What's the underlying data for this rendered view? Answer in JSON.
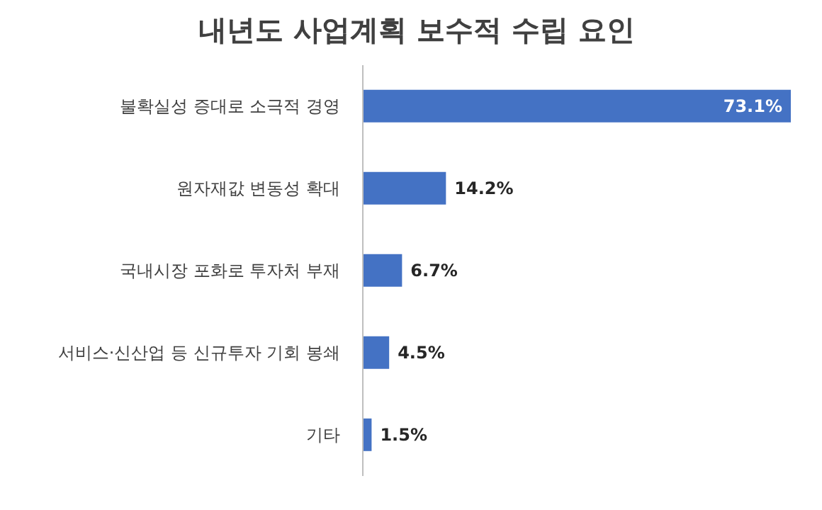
{
  "chart_data": {
    "type": "bar",
    "orientation": "horizontal",
    "title": "내년도 사업계획 보수적 수립 요인",
    "categories": [
      "불확실성 증대로 소극적 경영",
      "원자재값 변동성 확대",
      "국내시장 포화로 투자처 부재",
      "서비스·신산업 등 신규투자 기회 봉쇄",
      "기타"
    ],
    "values": [
      73.1,
      14.2,
      6.7,
      4.5,
      1.5
    ],
    "value_labels": [
      "73.1%",
      "14.2%",
      "6.7%",
      "4.5%",
      "1.5%"
    ],
    "color": "#4472c4"
  }
}
